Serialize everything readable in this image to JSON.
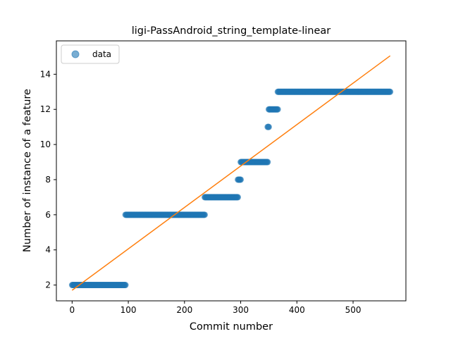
{
  "chart_data": {
    "type": "scatter",
    "title": "ligi-PassAndroid_string_template-linear",
    "xlabel": "Commit number",
    "ylabel": "Number of instance of a feature",
    "xlim": [
      -28,
      594
    ],
    "ylim": [
      1.1,
      15.9
    ],
    "x_ticks": [
      0,
      100,
      200,
      300,
      400,
      500
    ],
    "y_ticks": [
      2,
      4,
      6,
      8,
      10,
      12,
      14
    ],
    "legend": {
      "position": "top-left",
      "entries": [
        "data"
      ]
    },
    "colors": {
      "data": "#1f77b4",
      "fit": "#ff7f0e"
    },
    "series": [
      {
        "name": "data",
        "kind": "scatter",
        "runs": [
          {
            "x_start": 0,
            "x_end": 95,
            "y": 2
          },
          {
            "x_start": 95,
            "x_end": 236,
            "y": 6
          },
          {
            "x_start": 236,
            "x_end": 295,
            "y": 7
          },
          {
            "x_start": 295,
            "x_end": 300,
            "y": 8
          },
          {
            "x_start": 300,
            "x_end": 348,
            "y": 9
          },
          {
            "x_start": 348,
            "x_end": 350,
            "y": 11
          },
          {
            "x_start": 350,
            "x_end": 366,
            "y": 12
          },
          {
            "x_start": 366,
            "x_end": 566,
            "y": 13
          }
        ]
      },
      {
        "kind": "line",
        "points": [
          {
            "x": 0,
            "y": 1.7
          },
          {
            "x": 566,
            "y": 15.05
          }
        ]
      }
    ]
  }
}
